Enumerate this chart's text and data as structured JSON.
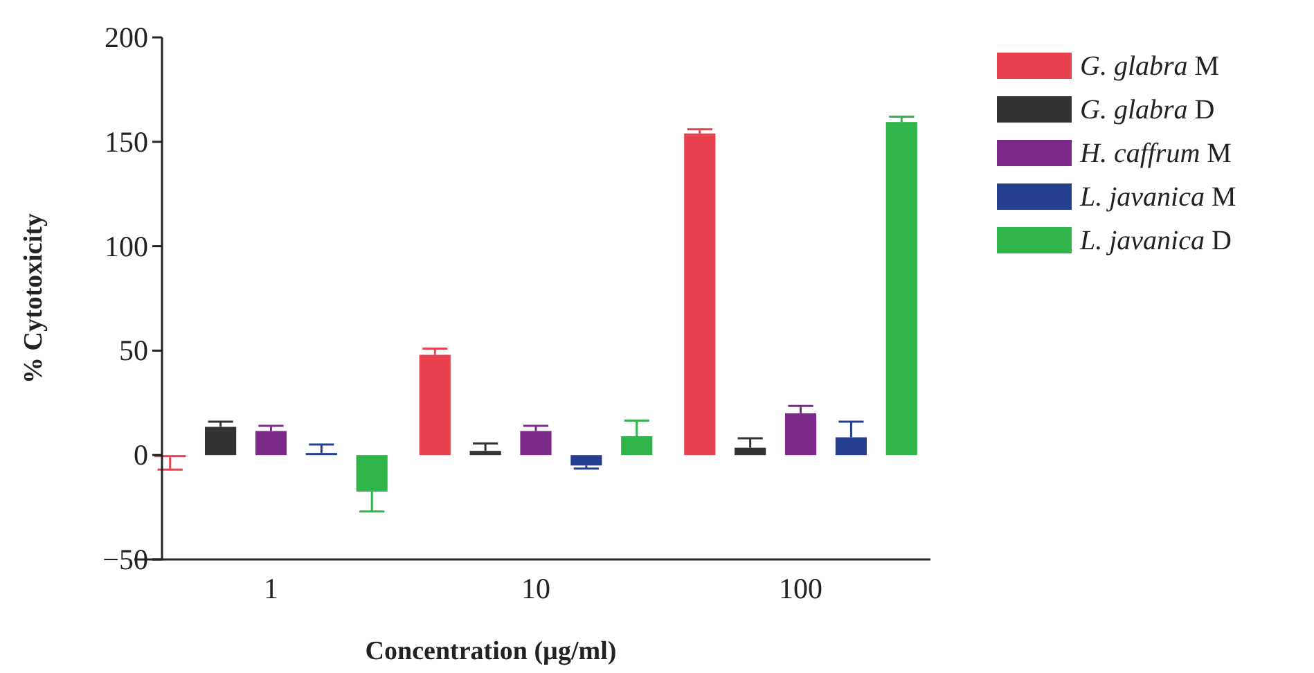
{
  "chart_data": {
    "type": "bar",
    "xlabel": "Concentration (µg/ml)",
    "ylabel": "% Cytotoxicity",
    "categories": [
      "1",
      "10",
      "100"
    ],
    "ylim": [
      -50,
      200
    ],
    "yticks": [
      -50,
      0,
      50,
      100,
      150,
      200
    ],
    "grid": false,
    "legend": "right",
    "series": [
      {
        "name": "G. glabra M",
        "color": "#e8424f",
        "values": [
          -1,
          48,
          154
        ],
        "errors": [
          [
            -7,
            -1
          ],
          [
            48,
            51
          ],
          [
            154,
            156
          ]
        ]
      },
      {
        "name": "G. glabra D",
        "color": "#333333",
        "values": [
          13.5,
          2,
          3.5
        ],
        "errors": [
          [
            13.5,
            16
          ],
          [
            2,
            5.5
          ],
          [
            3.5,
            8
          ]
        ]
      },
      {
        "name": "H. caffrum M",
        "color": "#7b2a8a",
        "values": [
          11.5,
          11.5,
          20
        ],
        "errors": [
          [
            11.5,
            14
          ],
          [
            11.5,
            14
          ],
          [
            20,
            23.5
          ]
        ]
      },
      {
        "name": "L. javanica M",
        "color": "#243f8f",
        "values": [
          1,
          -5,
          8.5
        ],
        "errors": [
          [
            1,
            5
          ],
          [
            -6.5,
            -5
          ],
          [
            8.5,
            16
          ]
        ]
      },
      {
        "name": "L. javanica D",
        "color": "#2fb54a",
        "values": [
          -17.5,
          9,
          159.5
        ],
        "errors": [
          [
            -27,
            -17.5
          ],
          [
            9,
            16.5
          ],
          [
            159.5,
            162
          ]
        ]
      }
    ]
  }
}
